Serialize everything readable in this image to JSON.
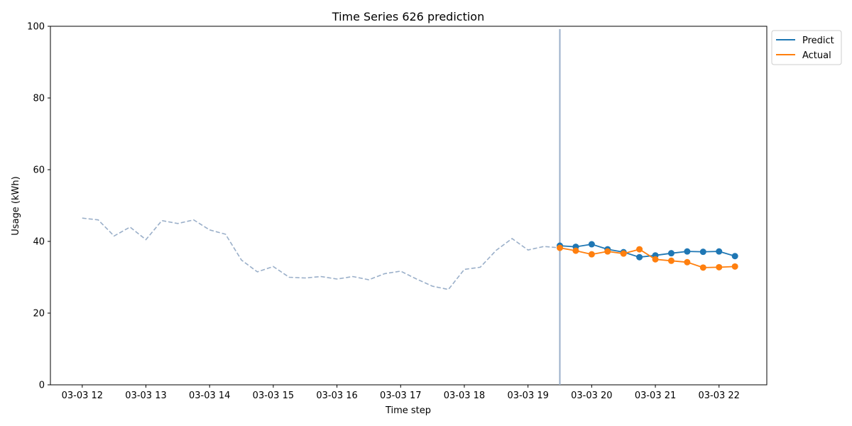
{
  "chart_data": {
    "type": "line",
    "title": "Time Series 626 prediction",
    "xlabel": "Time step",
    "ylabel": "Usage (kWh)",
    "ylim": [
      0,
      100
    ],
    "yticks": [
      0,
      20,
      40,
      60,
      80,
      100
    ],
    "xlim": [
      "03-03 11:30",
      "03-03 22:45"
    ],
    "xticks": [
      {
        "value": "03-03 12:00",
        "label": "03-03 12"
      },
      {
        "value": "03-03 13:00",
        "label": "03-03 13"
      },
      {
        "value": "03-03 14:00",
        "label": "03-03 14"
      },
      {
        "value": "03-03 15:00",
        "label": "03-03 15"
      },
      {
        "value": "03-03 16:00",
        "label": "03-03 16"
      },
      {
        "value": "03-03 17:00",
        "label": "03-03 17"
      },
      {
        "value": "03-03 18:00",
        "label": "03-03 18"
      },
      {
        "value": "03-03 19:00",
        "label": "03-03 19"
      },
      {
        "value": "03-03 20:00",
        "label": "03-03 20"
      },
      {
        "value": "03-03 21:00",
        "label": "03-03 21"
      },
      {
        "value": "03-03 22:00",
        "label": "03-03 22"
      }
    ],
    "grid": false,
    "legend": "outside-top-right",
    "forecast_start": "03-03 19:30",
    "series": [
      {
        "role": "history",
        "color": "#9aafc9",
        "style": "dashed",
        "x": [
          "03-03 12:00",
          "03-03 12:15",
          "03-03 12:30",
          "03-03 12:45",
          "03-03 13:00",
          "03-03 13:15",
          "03-03 13:30",
          "03-03 13:45",
          "03-03 14:00",
          "03-03 14:15",
          "03-03 14:30",
          "03-03 14:45",
          "03-03 15:00",
          "03-03 15:15",
          "03-03 15:30",
          "03-03 15:45",
          "03-03 16:00",
          "03-03 16:15",
          "03-03 16:30",
          "03-03 16:45",
          "03-03 17:00",
          "03-03 17:15",
          "03-03 17:30",
          "03-03 17:45",
          "03-03 18:00",
          "03-03 18:15",
          "03-03 18:30",
          "03-03 18:45",
          "03-03 19:00",
          "03-03 19:15",
          "03-03 19:30"
        ],
        "values": [
          46.5,
          46.0,
          41.5,
          44.0,
          40.5,
          45.8,
          45.0,
          46.0,
          43.2,
          42.0,
          34.8,
          31.5,
          33.0,
          30.0,
          29.8,
          30.2,
          29.5,
          30.2,
          29.3,
          31.0,
          31.7,
          29.5,
          27.5,
          26.6,
          32.2,
          32.8,
          37.5,
          40.8,
          37.6,
          38.6,
          38.2
        ]
      },
      {
        "name": "Predict",
        "color": "#1f77b4",
        "style": "solid",
        "markers": true,
        "x": [
          "03-03 19:30",
          "03-03 19:45",
          "03-03 20:00",
          "03-03 20:15",
          "03-03 20:30",
          "03-03 20:45",
          "03-03 21:00",
          "03-03 21:15",
          "03-03 21:30",
          "03-03 21:45",
          "03-03 22:00",
          "03-03 22:15"
        ],
        "values": [
          38.8,
          38.5,
          39.2,
          37.8,
          37.0,
          35.6,
          36.1,
          36.7,
          37.2,
          37.1,
          37.2,
          35.9
        ]
      },
      {
        "name": "Actual",
        "color": "#ff7f0e",
        "style": "solid",
        "markers": true,
        "x": [
          "03-03 19:30",
          "03-03 19:45",
          "03-03 20:00",
          "03-03 20:15",
          "03-03 20:30",
          "03-03 20:45",
          "03-03 21:00",
          "03-03 21:15",
          "03-03 21:30",
          "03-03 21:45",
          "03-03 22:00",
          "03-03 22:15"
        ],
        "values": [
          38.2,
          37.4,
          36.4,
          37.2,
          36.6,
          37.8,
          35.0,
          34.6,
          34.2,
          32.7,
          32.8,
          33.0
        ]
      }
    ]
  }
}
